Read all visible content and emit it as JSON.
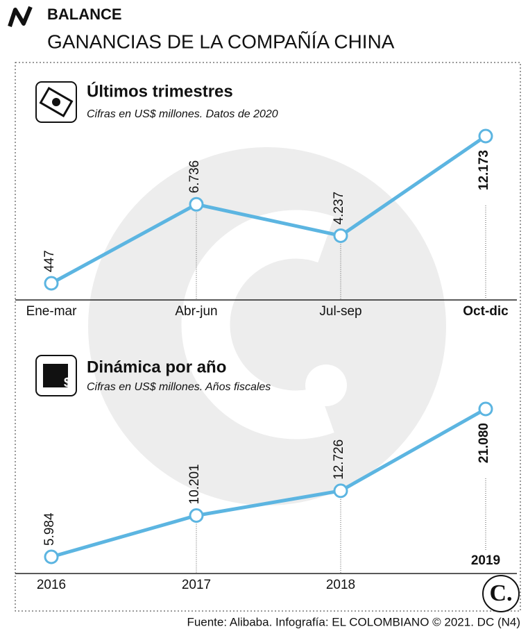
{
  "header": {
    "section": "BALANCE",
    "title": "GANANCIAS DE LA COMPAÑÍA CHINA"
  },
  "chart_data": [
    {
      "type": "line",
      "title": "Últimos trimestres",
      "subtitle": "Cifras en US$ millones. Datos de 2020",
      "categories": [
        "Ene-mar",
        "Abr-jun",
        "Jul-sep",
        "Oct-dic"
      ],
      "values": [
        447,
        6736,
        4237,
        12173
      ],
      "value_labels": [
        "447",
        "6.736",
        "4.237",
        "12.173"
      ],
      "color": "#5cb5e1"
    },
    {
      "type": "line",
      "title": "Dinámica por año",
      "subtitle": "Cifras en US$ millones. Años fiscales",
      "categories": [
        "2016",
        "2017",
        "2018",
        "2019"
      ],
      "values": [
        5984,
        10201,
        12726,
        21080
      ],
      "value_labels": [
        "5.984",
        "10.201",
        "12.726",
        "21.080"
      ],
      "color": "#5cb5e1"
    }
  ],
  "footer": {
    "source": "Fuente: Alibaba. Infografía: EL COLOMBIANO © 2021. DC (N4)"
  }
}
